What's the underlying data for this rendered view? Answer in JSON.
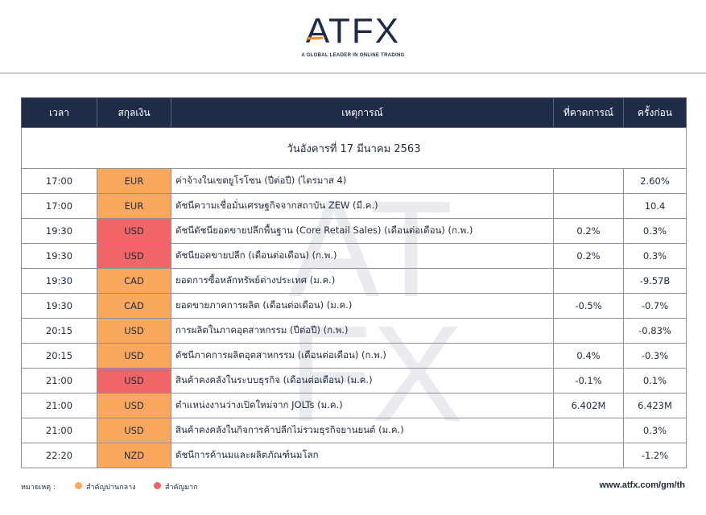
{
  "brand": {
    "logo": "ATFX",
    "tagline": "A GLOBAL LEADER IN ONLINE TRADING",
    "watermark": [
      "AT",
      "FX"
    ],
    "colors": {
      "navy": "#1f2b47",
      "orange": "#f9a85d",
      "red": "#f06565",
      "accent": "#f28c28"
    }
  },
  "table": {
    "headers": [
      "เวลา",
      "สกุลเงิน",
      "เหตุการณ์",
      "ที่คาดการณ์",
      "ครั้งก่อน"
    ],
    "date_title": "วันอังคารที่ 17 มีนาคม 2563",
    "rows": [
      {
        "time": "17:00",
        "currency": "EUR",
        "importance": "medium",
        "event": "ค่าจ้างในเขตยูโรโซน (ปีต่อปี) (ไตรมาส 4)",
        "forecast": "",
        "previous": "2.60%"
      },
      {
        "time": "17:00",
        "currency": "EUR",
        "importance": "medium",
        "event": "ดัชนีความเชื่อมั่นเศรษฐกิจจากสถาบัน ZEW (มี.ค.)",
        "forecast": "",
        "previous": "10.4"
      },
      {
        "time": "19:30",
        "currency": "USD",
        "importance": "high",
        "event": "ดัชนีดัชนียอดขายปลีกพื้นฐาน (Core Retail Sales) (เดือนต่อเดือน) (ก.พ.)",
        "forecast": "0.2%",
        "previous": "0.3%"
      },
      {
        "time": "19:30",
        "currency": "USD",
        "importance": "high",
        "event": "ดัชนียอดขายปลีก (เดือนต่อเดือน) (ก.พ.)",
        "forecast": "0.2%",
        "previous": "0.3%"
      },
      {
        "time": "19:30",
        "currency": "CAD",
        "importance": "medium",
        "event": "ยอดการซื้อหลักทรัพย์ต่างประเทศ (ม.ค.)",
        "forecast": "",
        "previous": "-9.57B"
      },
      {
        "time": "19:30",
        "currency": "CAD",
        "importance": "medium",
        "event": "ยอดขายภาคการผลิต (เดือนต่อเดือน) (ม.ค.)",
        "forecast": "-0.5%",
        "previous": "-0.7%"
      },
      {
        "time": "20:15",
        "currency": "USD",
        "importance": "medium",
        "event": "การผลิตในภาคอุตสาหกรรม (ปีต่อปี) (ก.พ.)",
        "forecast": "",
        "previous": "-0.83%"
      },
      {
        "time": "20:15",
        "currency": "USD",
        "importance": "medium",
        "event": "ดัชนีภาคการผลิตอุตสาหกรรม (เดือนต่อเดือน) (ก.พ.)",
        "forecast": "0.4%",
        "previous": "-0.3%"
      },
      {
        "time": "21:00",
        "currency": "USD",
        "importance": "high",
        "event": "สินค้าคงคลังในระบบธุรกิจ (เดือนต่อเดือน) (ม.ค.)",
        "forecast": "-0.1%",
        "previous": "0.1%"
      },
      {
        "time": "21:00",
        "currency": "USD",
        "importance": "medium",
        "event": "ตำแหน่งงานว่างเปิดใหม่จาก JOLTs (ม.ค.)",
        "forecast": "6.402M",
        "previous": "6.423M"
      },
      {
        "time": "21:00",
        "currency": "USD",
        "importance": "medium",
        "event": "สินค้าคงคลังในกิจการค้าปลีกไม่รวมธุรกิจยานยนต์ (ม.ค.)",
        "forecast": "",
        "previous": "0.3%"
      },
      {
        "time": "22:20",
        "currency": "NZD",
        "importance": "medium",
        "event": "ดัชนีการค้านมและผลิตภัณฑ์นมโลก",
        "forecast": "",
        "previous": "-1.2%"
      }
    ]
  },
  "footer": {
    "legend_title": "หมายเหตุ :",
    "legend": [
      {
        "label": "สำคัญปานกลาง",
        "color": "#f9a85d"
      },
      {
        "label": "สำคัญมาก",
        "color": "#f06565"
      }
    ],
    "url": "www.atfx.com/gm/th"
  }
}
